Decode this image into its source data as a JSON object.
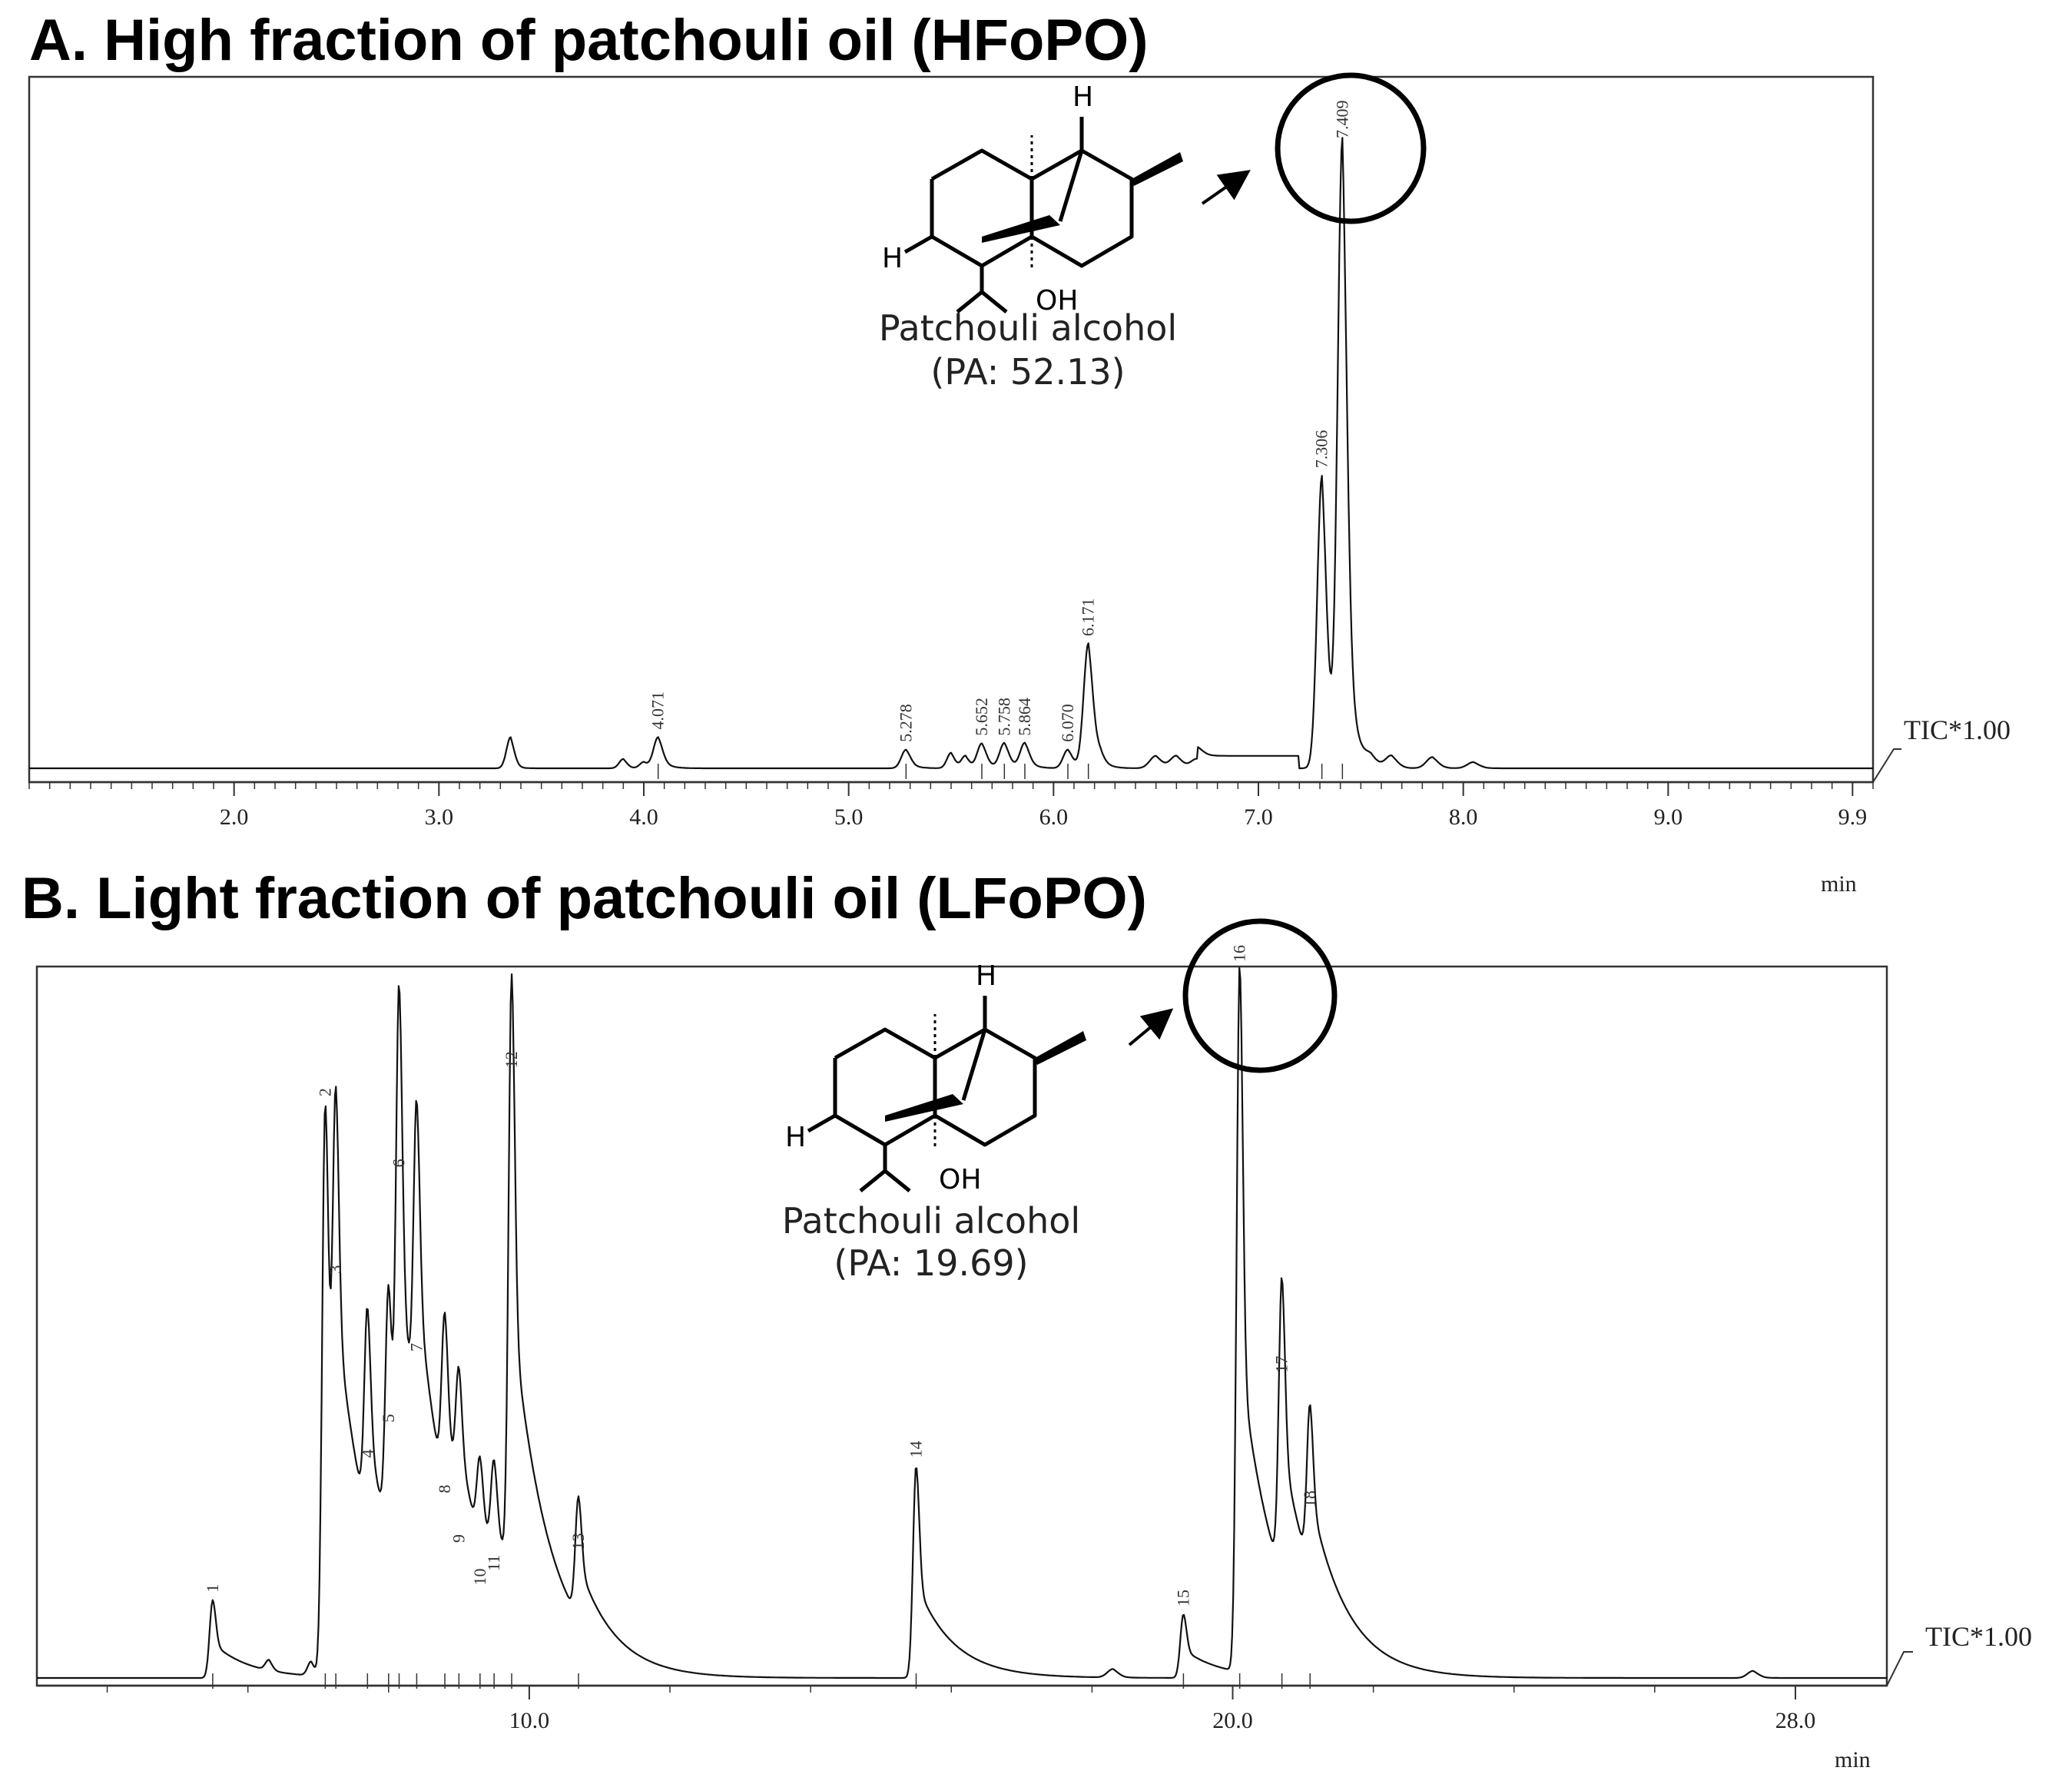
{
  "chart_data": [
    {
      "type": "line",
      "title": "A. High fraction of patchouli oil (HFoPO)",
      "xlabel": "min",
      "trace_label": "TIC*1.00",
      "x_ticks": [
        "2.0",
        "3.0",
        "4.0",
        "5.0",
        "6.0",
        "7.0",
        "8.0",
        "9.0",
        "9.9"
      ],
      "xlim": [
        1.0,
        10.0
      ],
      "peaks": [
        {
          "label": "4.071",
          "x": 4.07,
          "y": 0.05
        },
        {
          "label": "5.278",
          "x": 5.28,
          "y": 0.03
        },
        {
          "label": "5.652",
          "x": 5.65,
          "y": 0.04
        },
        {
          "label": "5.758",
          "x": 5.76,
          "y": 0.04
        },
        {
          "label": "5.864",
          "x": 5.86,
          "y": 0.04
        },
        {
          "label": "6.070",
          "x": 6.07,
          "y": 0.03
        },
        {
          "label": "6.171",
          "x": 6.17,
          "y": 0.2
        },
        {
          "label": "7.306",
          "x": 7.31,
          "y": 0.47
        },
        {
          "label": "7.409",
          "x": 7.41,
          "y": 1.0
        }
      ],
      "annotation": {
        "name": "Patchouli alcohol",
        "value": "(PA: 52.13)",
        "peak": "7.409"
      }
    },
    {
      "type": "line",
      "title": "B. Light fraction of patchouli oil (LFoPO)",
      "xlabel": "min",
      "trace_label": "TIC*1.00",
      "x_ticks": [
        "10.0",
        "20.0",
        "28.0"
      ],
      "xlim": [
        3.0,
        29.3
      ],
      "peaks": [
        {
          "label": "1",
          "x": 5.5,
          "y": 0.11
        },
        {
          "label": "2",
          "x": 7.1,
          "y": 0.81
        },
        {
          "label": "3",
          "x": 7.25,
          "y": 0.56
        },
        {
          "label": "4",
          "x": 7.7,
          "y": 0.3
        },
        {
          "label": "5",
          "x": 8.0,
          "y": 0.35
        },
        {
          "label": "6",
          "x": 8.15,
          "y": 0.71
        },
        {
          "label": "7",
          "x": 8.4,
          "y": 0.45
        },
        {
          "label": "8",
          "x": 8.8,
          "y": 0.25
        },
        {
          "label": "9",
          "x": 9.0,
          "y": 0.18
        },
        {
          "label": "10",
          "x": 9.3,
          "y": 0.12
        },
        {
          "label": "11",
          "x": 9.5,
          "y": 0.14
        },
        {
          "label": "12",
          "x": 9.75,
          "y": 0.85
        },
        {
          "label": "13",
          "x": 10.7,
          "y": 0.17
        },
        {
          "label": "14",
          "x": 15.5,
          "y": 0.3
        },
        {
          "label": "15",
          "x": 19.3,
          "y": 0.09
        },
        {
          "label": "16",
          "x": 20.1,
          "y": 1.0
        },
        {
          "label": "17",
          "x": 20.7,
          "y": 0.42
        },
        {
          "label": "18",
          "x": 21.1,
          "y": 0.23
        }
      ],
      "annotation": {
        "name": "Patchouli alcohol",
        "value": "(PA: 19.69)",
        "peak": "16"
      }
    }
  ]
}
